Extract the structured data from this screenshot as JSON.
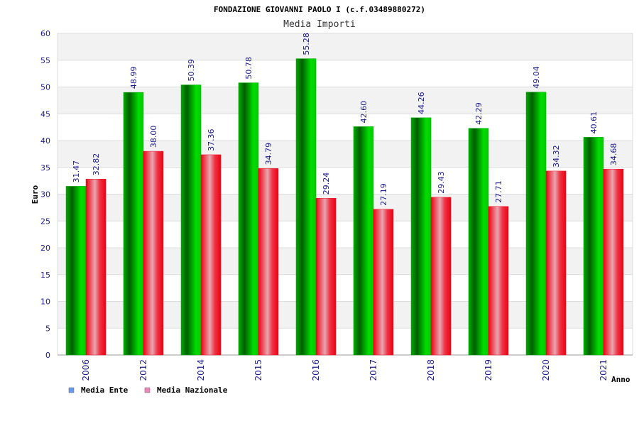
{
  "chart_data": {
    "type": "bar",
    "title": "FONDAZIONE GIOVANNI PAOLO I (c.f.03489880272)",
    "subtitle": "Media Importi",
    "xlabel": "Anno",
    "ylabel": "Euro",
    "ylim": [
      0,
      60
    ],
    "yticks": [
      "0",
      "5",
      "10",
      "15",
      "20",
      "25",
      "30",
      "35",
      "40",
      "45",
      "50",
      "55",
      "60"
    ],
    "grid": true,
    "legend_position": "bottom-left",
    "categories": [
      "2006",
      "2012",
      "2014",
      "2015",
      "2016",
      "2017",
      "2018",
      "2019",
      "2020",
      "2021"
    ],
    "series": [
      {
        "name": "Media Ente",
        "color": "#00aa00",
        "legend_color": "#6699ee",
        "values": [
          31.47,
          48.99,
          50.39,
          50.78,
          55.28,
          42.6,
          44.26,
          42.29,
          49.04,
          40.61
        ],
        "labels": [
          "31.47",
          "48.99",
          "50.39",
          "50.78",
          "55.28",
          "42.60",
          "44.26",
          "42.29",
          "49.04",
          "40.61"
        ]
      },
      {
        "name": "Media Nazionale",
        "color": "#ee1122",
        "legend_color": "#ee88bb",
        "values": [
          32.82,
          38.0,
          37.36,
          34.79,
          29.24,
          27.19,
          29.43,
          27.71,
          34.32,
          34.68
        ],
        "labels": [
          "32.82",
          "38.00",
          "37.36",
          "34.79",
          "29.24",
          "27.19",
          "29.43",
          "27.71",
          "34.32",
          "34.68"
        ]
      }
    ]
  }
}
